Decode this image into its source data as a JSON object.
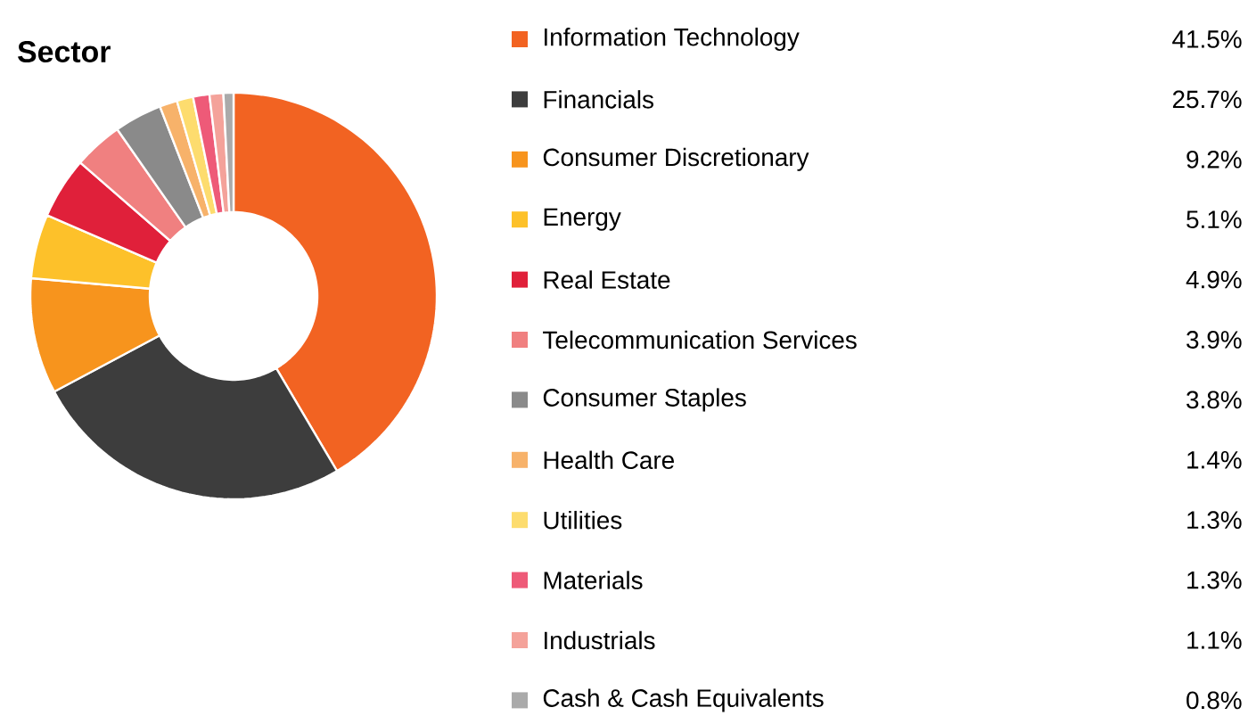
{
  "chart_data": {
    "type": "donut",
    "title": "Sector",
    "categories": [
      "Information Technology",
      "Financials",
      "Consumer Discretionary",
      "Energy",
      "Real Estate",
      "Telecommunication Services",
      "Consumer Staples",
      "Health Care",
      "Utilities",
      "Materials",
      "Industrials",
      "Cash & Cash Equivalents"
    ],
    "values": [
      41.5,
      25.7,
      9.2,
      5.1,
      4.9,
      3.9,
      3.8,
      1.4,
      1.3,
      1.3,
      1.1,
      0.8
    ],
    "value_labels": [
      "41.5%",
      "25.7%",
      "9.2%",
      "5.1%",
      "4.9%",
      "3.9%",
      "3.8%",
      "1.4%",
      "1.3%",
      "1.3%",
      "1.1%",
      "0.8%"
    ],
    "colors": [
      "#f26322",
      "#3d3d3d",
      "#f7941d",
      "#fdc12a",
      "#e0203a",
      "#f08080",
      "#8a8a8a",
      "#f7b26a",
      "#fddc6e",
      "#ee5a78",
      "#f4a29a",
      "#aaaaaa"
    ],
    "legend": "right"
  }
}
